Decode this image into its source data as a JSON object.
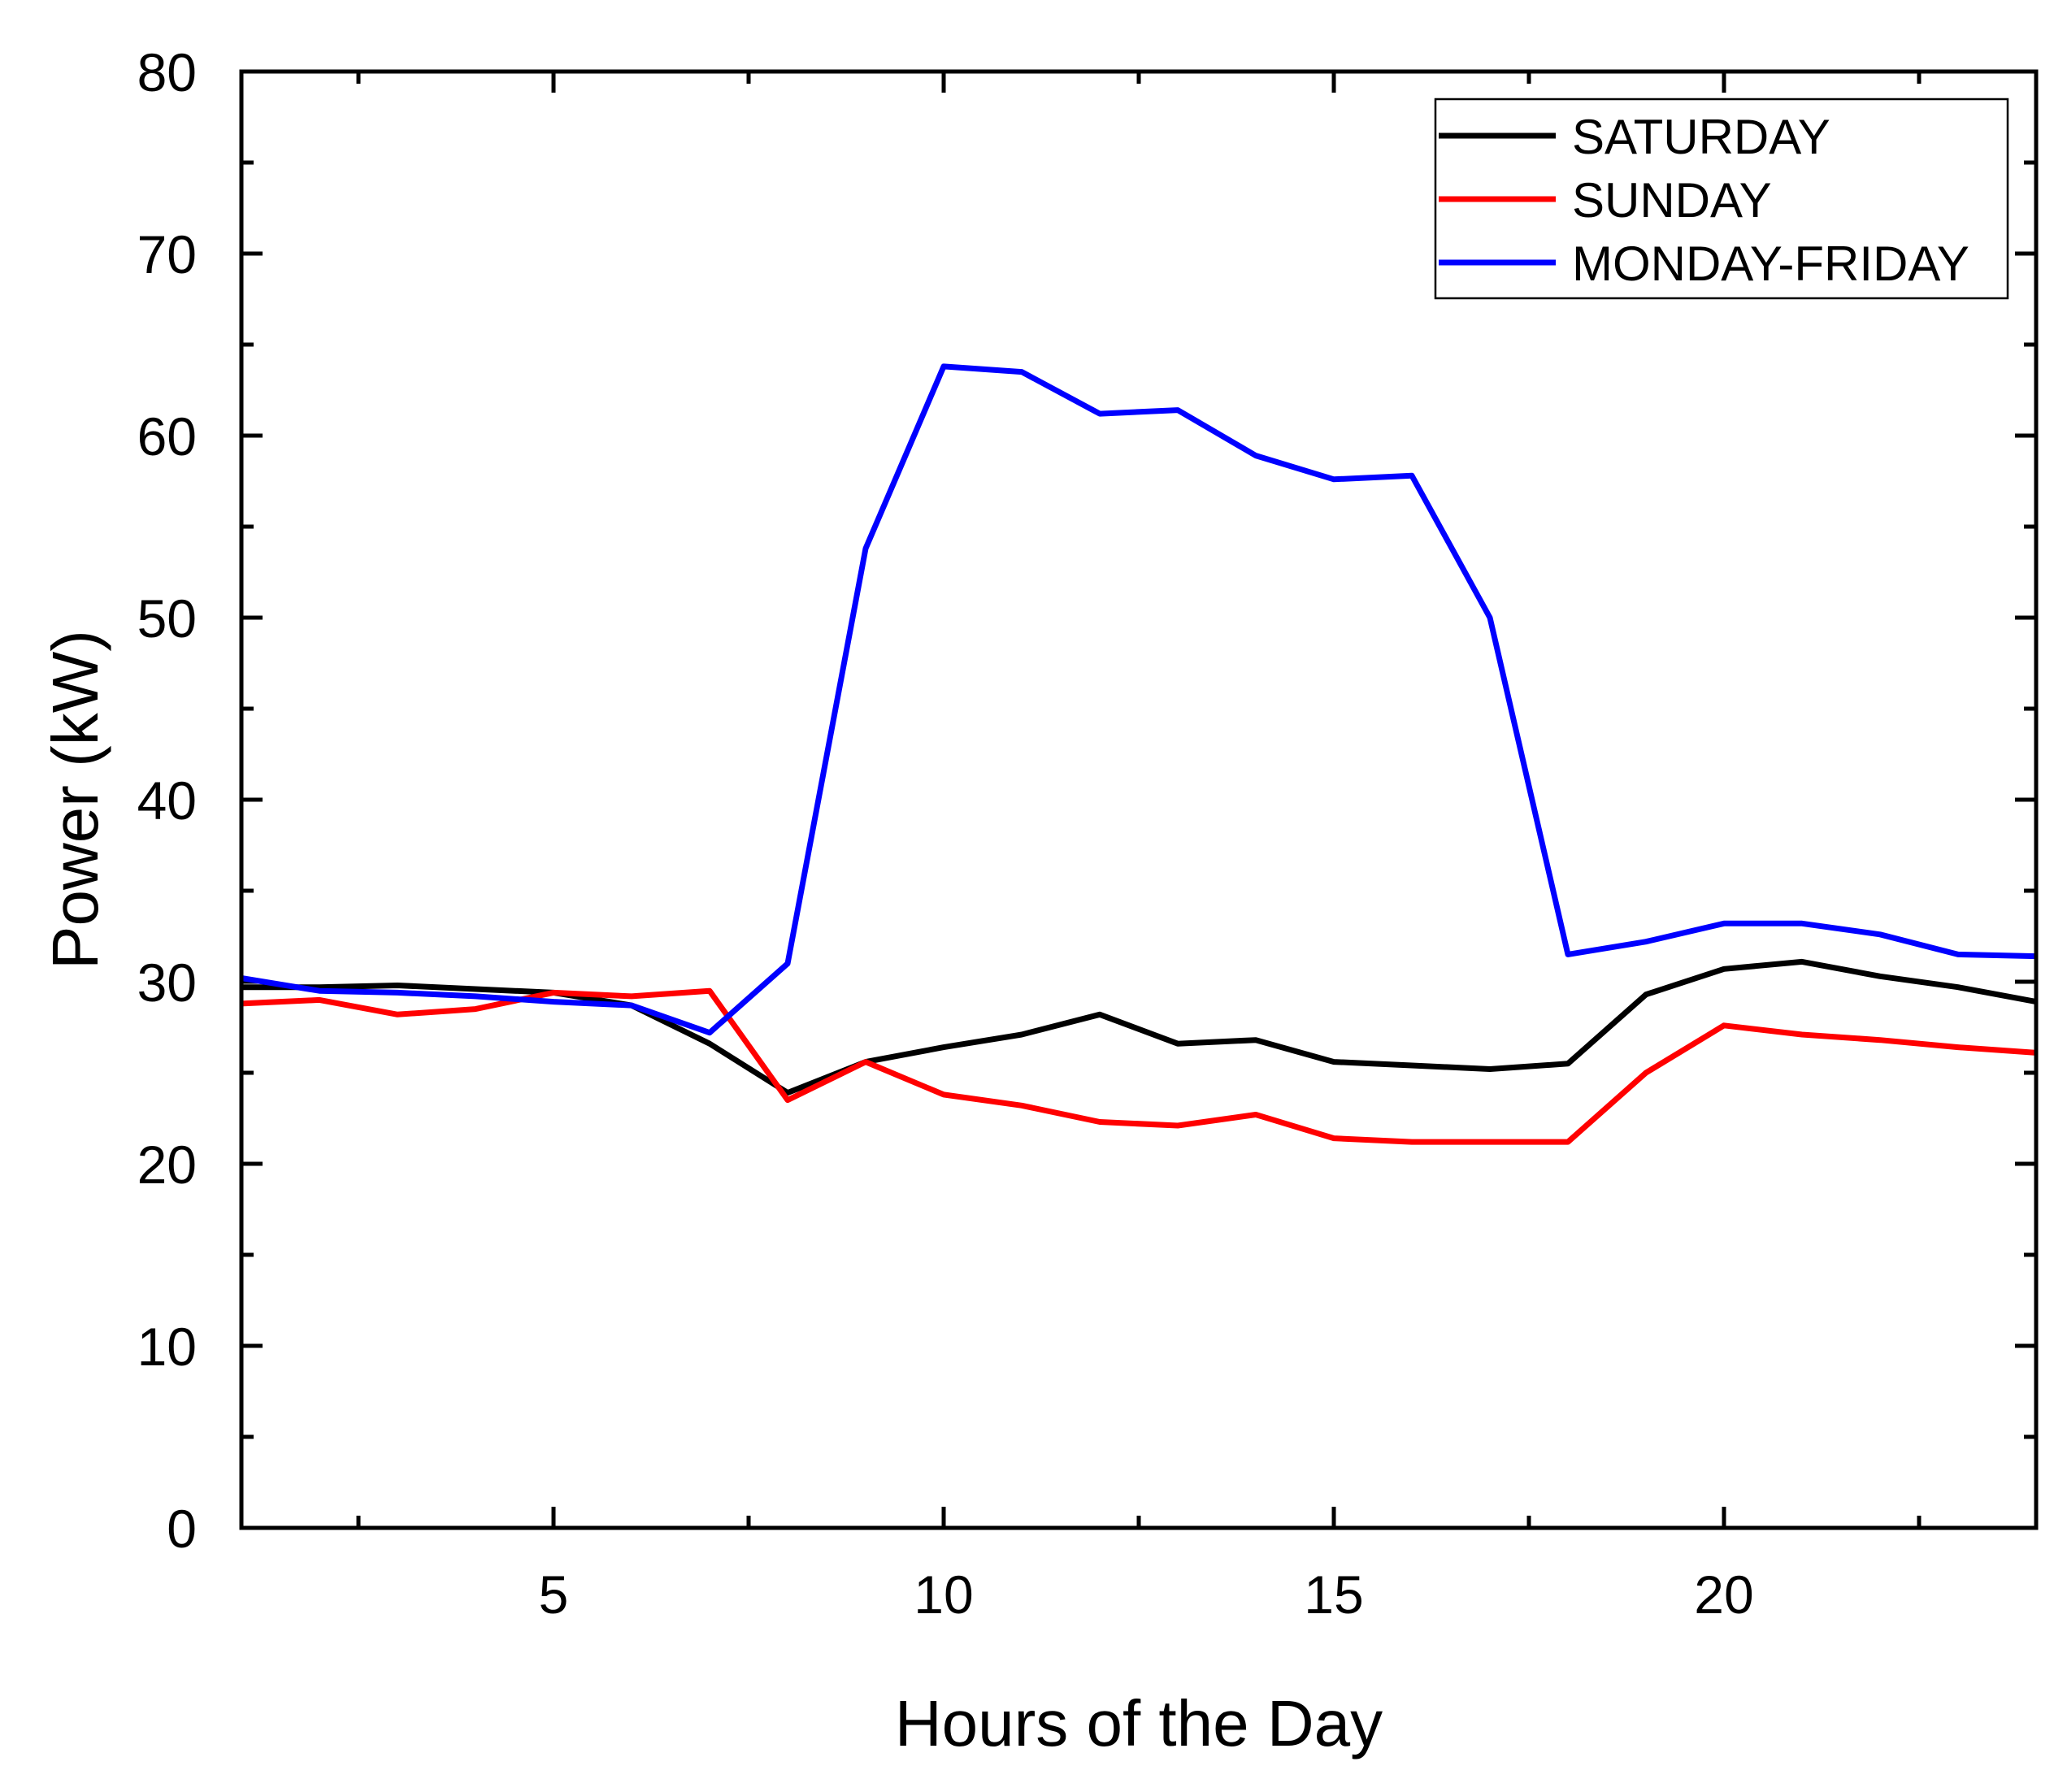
{
  "chart_data": {
    "type": "line",
    "title": "",
    "xlabel": "Hours of the Day",
    "ylabel": "Power (kW)",
    "xlim": [
      1,
      24
    ],
    "ylim": [
      0,
      80
    ],
    "x_ticks": [
      5,
      10,
      15,
      20
    ],
    "y_ticks": [
      0,
      10,
      20,
      30,
      40,
      50,
      60,
      70,
      80
    ],
    "grid": false,
    "legend_position": "top-right",
    "x": [
      1,
      2,
      3,
      4,
      5,
      6,
      7,
      8,
      9,
      10,
      11,
      12,
      13,
      14,
      15,
      16,
      17,
      18,
      19,
      20,
      21,
      22,
      23,
      24
    ],
    "series": [
      {
        "name": "SATURDAY",
        "color": "#000000",
        "values": [
          29.7,
          29.7,
          29.8,
          29.6,
          29.4,
          28.7,
          26.6,
          23.9,
          25.6,
          26.4,
          27.1,
          28.2,
          26.6,
          26.8,
          25.6,
          25.4,
          25.2,
          25.5,
          29.3,
          30.7,
          31.1,
          30.3,
          29.7,
          28.9
        ]
      },
      {
        "name": "SUNDAY",
        "color": "#ff0000",
        "values": [
          28.8,
          29.0,
          28.2,
          28.5,
          29.4,
          29.2,
          29.5,
          23.5,
          25.6,
          23.8,
          23.2,
          22.3,
          22.1,
          22.7,
          21.4,
          21.2,
          21.2,
          21.2,
          25.0,
          27.6,
          27.1,
          26.8,
          26.4,
          26.1
        ]
      },
      {
        "name": "MONDAY-FRIDAY",
        "color": "#0000ff",
        "values": [
          30.2,
          29.5,
          29.4,
          29.2,
          28.9,
          28.7,
          27.2,
          31.0,
          53.8,
          63.8,
          63.5,
          61.2,
          61.4,
          58.9,
          57.6,
          57.8,
          50.0,
          31.5,
          32.2,
          33.2,
          33.2,
          32.6,
          31.5,
          31.4
        ]
      }
    ]
  }
}
